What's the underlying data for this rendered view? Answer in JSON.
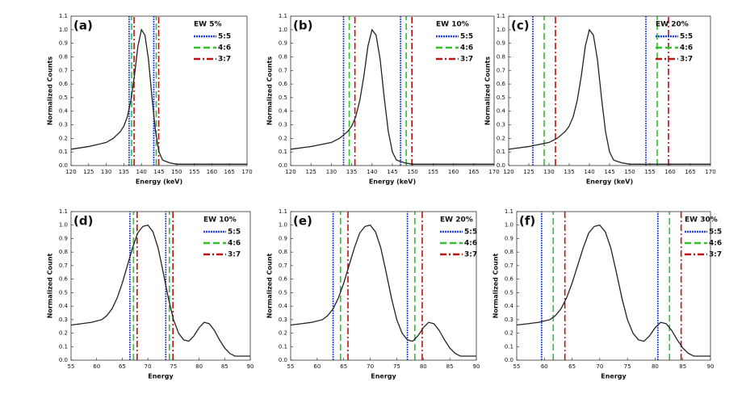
{
  "chart_data": [
    {
      "type": "line",
      "title": "(a)",
      "legend_title": "EW 5%",
      "xlabel": "Energy (keV)",
      "ylabel": "Normalized Counts",
      "x": [
        120,
        125,
        130,
        132,
        134,
        135,
        136,
        137,
        138,
        139,
        140,
        141,
        142,
        143,
        144,
        145,
        146,
        148,
        150,
        155,
        160,
        165,
        170
      ],
      "values": [
        0.12,
        0.14,
        0.17,
        0.2,
        0.25,
        0.29,
        0.36,
        0.48,
        0.66,
        0.88,
        1.0,
        0.96,
        0.78,
        0.5,
        0.25,
        0.1,
        0.04,
        0.02,
        0.01,
        0.01,
        0.01,
        0.01,
        0.01
      ],
      "color": "#222222",
      "xlim": [
        120,
        170
      ],
      "xticks": [
        120,
        125,
        130,
        135,
        140,
        145,
        150,
        155,
        160,
        165,
        170
      ],
      "ylim": [
        0,
        1.1
      ],
      "yticks": [
        {
          "value": 0,
          "label": "0.0"
        },
        0.1,
        0.2,
        0.3,
        0.4,
        0.5,
        0.6,
        0.7,
        0.8,
        0.9,
        {
          "value": 1,
          "label": "1.0"
        },
        1.1
      ],
      "windows": [
        {
          "name": "5:5",
          "color": "#2040e0",
          "dash": "2,1",
          "values": [
            136.5,
            143.5
          ]
        },
        {
          "name": "4:6",
          "color": "#30c030",
          "dash": "8,4",
          "values": [
            137.2,
            144.2
          ]
        },
        {
          "name": "3:7",
          "color": "#c01010",
          "dash": "8,3,2,3",
          "values": [
            137.9,
            144.9
          ]
        }
      ]
    },
    {
      "type": "line",
      "title": "(b)",
      "legend_title": "EW 10%",
      "xlabel": "Energy (keV)",
      "ylabel": "Normalized Counts",
      "x": [
        120,
        125,
        130,
        132,
        134,
        135,
        136,
        137,
        138,
        139,
        140,
        141,
        142,
        143,
        144,
        145,
        146,
        148,
        150,
        155,
        160,
        165,
        170
      ],
      "values": [
        0.12,
        0.14,
        0.17,
        0.2,
        0.25,
        0.29,
        0.36,
        0.48,
        0.66,
        0.88,
        1.0,
        0.96,
        0.78,
        0.5,
        0.25,
        0.1,
        0.04,
        0.02,
        0.01,
        0.01,
        0.01,
        0.01,
        0.01
      ],
      "color": "#222222",
      "xlim": [
        120,
        170
      ],
      "xticks": [
        120,
        125,
        130,
        135,
        140,
        145,
        150,
        155,
        160,
        165,
        170
      ],
      "ylim": [
        0,
        1.1
      ],
      "yticks": [
        {
          "value": 0,
          "label": "0.0"
        },
        0.1,
        0.2,
        0.3,
        0.4,
        0.5,
        0.6,
        0.7,
        0.8,
        0.9,
        {
          "value": 1,
          "label": "1.0"
        },
        1.1
      ],
      "windows": [
        {
          "name": "5:5",
          "color": "#2040e0",
          "dash": "2,1",
          "values": [
            133,
            147
          ]
        },
        {
          "name": "4:6",
          "color": "#30c030",
          "dash": "8,4",
          "values": [
            134.4,
            148.4
          ]
        },
        {
          "name": "3:7",
          "color": "#c01010",
          "dash": "8,3,2,3",
          "values": [
            135.8,
            149.8
          ]
        }
      ]
    },
    {
      "type": "line",
      "title": "(c)",
      "legend_title": "EW 20%",
      "xlabel": "Energy (keV)",
      "ylabel": "Normalized Counts",
      "x": [
        120,
        125,
        130,
        132,
        134,
        135,
        136,
        137,
        138,
        139,
        140,
        141,
        142,
        143,
        144,
        145,
        146,
        148,
        150,
        155,
        160,
        165,
        170
      ],
      "values": [
        0.12,
        0.14,
        0.17,
        0.2,
        0.25,
        0.29,
        0.36,
        0.48,
        0.66,
        0.88,
        1.0,
        0.96,
        0.78,
        0.5,
        0.25,
        0.1,
        0.04,
        0.02,
        0.01,
        0.01,
        0.01,
        0.01,
        0.01
      ],
      "color": "#222222",
      "xlim": [
        120,
        170
      ],
      "xticks": [
        120,
        125,
        130,
        135,
        140,
        145,
        150,
        155,
        160,
        165,
        170
      ],
      "ylim": [
        0,
        1.1
      ],
      "yticks": [
        {
          "value": 0,
          "label": "0.0"
        },
        0.1,
        0.2,
        0.3,
        0.4,
        0.5,
        0.6,
        0.7,
        0.8,
        0.9,
        {
          "value": 1,
          "label": "1.0"
        },
        1.1
      ],
      "windows": [
        {
          "name": "5:5",
          "color": "#2040e0",
          "dash": "2,1",
          "values": [
            126,
            154
          ]
        },
        {
          "name": "4:6",
          "color": "#30c030",
          "dash": "8,4",
          "values": [
            128.8,
            156.8
          ]
        },
        {
          "name": "3:7",
          "color": "#c01010",
          "dash": "8,3,2,3",
          "values": [
            131.6,
            159.6
          ]
        }
      ]
    },
    {
      "type": "line",
      "title": "(d)",
      "legend_title": "EW 10%",
      "xlabel": "Energy",
      "ylabel": "Normalized Count",
      "x": [
        55,
        57,
        59,
        61,
        62,
        63,
        64,
        65,
        66,
        67,
        68,
        69,
        70,
        71,
        72,
        73,
        74,
        75,
        76,
        77,
        78,
        79,
        80,
        81,
        82,
        83,
        84,
        85,
        86,
        87,
        88,
        89,
        90
      ],
      "values": [
        0.26,
        0.27,
        0.28,
        0.3,
        0.33,
        0.38,
        0.46,
        0.57,
        0.7,
        0.83,
        0.94,
        0.99,
        1.0,
        0.95,
        0.83,
        0.65,
        0.46,
        0.3,
        0.2,
        0.15,
        0.14,
        0.18,
        0.24,
        0.28,
        0.27,
        0.22,
        0.15,
        0.09,
        0.05,
        0.03,
        0.03,
        0.03,
        0.03
      ],
      "color": "#222222",
      "xlim": [
        55,
        90
      ],
      "xticks": [
        55,
        60,
        65,
        70,
        75,
        80,
        85,
        90
      ],
      "ylim": [
        0,
        1.1
      ],
      "yticks": [
        {
          "value": 0,
          "label": "0.0"
        },
        0.1,
        0.2,
        0.3,
        0.4,
        0.5,
        0.6,
        0.7,
        0.8,
        0.9,
        {
          "value": 1,
          "label": "1.0"
        },
        1.1
      ],
      "windows": [
        {
          "name": "5:5",
          "color": "#2040e0",
          "dash": "2,1",
          "values": [
            66.5,
            73.5
          ]
        },
        {
          "name": "4:6",
          "color": "#30c030",
          "dash": "8,4",
          "values": [
            67.2,
            74.2
          ]
        },
        {
          "name": "3:7",
          "color": "#c01010",
          "dash": "8,3,2,3",
          "values": [
            67.9,
            74.9
          ]
        }
      ]
    },
    {
      "type": "line",
      "title": "(e)",
      "legend_title": "EW 20%",
      "xlabel": "Energy",
      "ylabel": "Normalized Count",
      "x": [
        55,
        57,
        59,
        61,
        62,
        63,
        64,
        65,
        66,
        67,
        68,
        69,
        70,
        71,
        72,
        73,
        74,
        75,
        76,
        77,
        78,
        79,
        80,
        81,
        82,
        83,
        84,
        85,
        86,
        87,
        88,
        89,
        90
      ],
      "values": [
        0.26,
        0.27,
        0.28,
        0.3,
        0.33,
        0.38,
        0.46,
        0.57,
        0.7,
        0.83,
        0.94,
        0.99,
        1.0,
        0.95,
        0.83,
        0.65,
        0.46,
        0.3,
        0.2,
        0.15,
        0.14,
        0.18,
        0.24,
        0.28,
        0.27,
        0.22,
        0.15,
        0.09,
        0.05,
        0.03,
        0.03,
        0.03,
        0.03
      ],
      "color": "#222222",
      "xlim": [
        55,
        90
      ],
      "xticks": [
        55,
        60,
        65,
        70,
        75,
        80,
        85,
        90
      ],
      "ylim": [
        0,
        1.1
      ],
      "yticks": [
        {
          "value": 0,
          "label": "0.0"
        },
        0.1,
        0.2,
        0.3,
        0.4,
        0.5,
        0.6,
        0.7,
        0.8,
        0.9,
        {
          "value": 1,
          "label": "1.0"
        },
        1.1
      ],
      "windows": [
        {
          "name": "5:5",
          "color": "#2040e0",
          "dash": "2,1",
          "values": [
            63,
            77
          ]
        },
        {
          "name": "4:6",
          "color": "#30c030",
          "dash": "8,4",
          "values": [
            64.4,
            78.4
          ]
        },
        {
          "name": "3:7",
          "color": "#c01010",
          "dash": "8,3,2,3",
          "values": [
            65.8,
            79.8
          ]
        }
      ]
    },
    {
      "type": "line",
      "title": "(f)",
      "legend_title": "EW 30%",
      "xlabel": "Energy",
      "ylabel": "Normalized Count",
      "x": [
        55,
        57,
        59,
        61,
        62,
        63,
        64,
        65,
        66,
        67,
        68,
        69,
        70,
        71,
        72,
        73,
        74,
        75,
        76,
        77,
        78,
        79,
        80,
        81,
        82,
        83,
        84,
        85,
        86,
        87,
        88,
        89,
        90
      ],
      "values": [
        0.26,
        0.27,
        0.28,
        0.3,
        0.33,
        0.38,
        0.46,
        0.57,
        0.7,
        0.83,
        0.94,
        0.99,
        1.0,
        0.95,
        0.83,
        0.65,
        0.46,
        0.3,
        0.2,
        0.15,
        0.14,
        0.18,
        0.24,
        0.28,
        0.27,
        0.22,
        0.15,
        0.09,
        0.05,
        0.03,
        0.03,
        0.03,
        0.03
      ],
      "color": "#222222",
      "xlim": [
        55,
        90
      ],
      "xticks": [
        55,
        60,
        65,
        70,
        75,
        80,
        85,
        90
      ],
      "ylim": [
        0,
        1.1
      ],
      "yticks": [
        {
          "value": 0,
          "label": "0.0"
        },
        0.1,
        0.2,
        0.3,
        0.4,
        0.5,
        0.6,
        0.7,
        0.8,
        0.9,
        {
          "value": 1,
          "label": "1.0"
        },
        1.1
      ],
      "windows": [
        {
          "name": "5:5",
          "color": "#2040e0",
          "dash": "2,1",
          "values": [
            59.5,
            80.5
          ]
        },
        {
          "name": "4:6",
          "color": "#30c030",
          "dash": "8,4",
          "values": [
            61.6,
            82.6
          ]
        },
        {
          "name": "3:7",
          "color": "#c01010",
          "dash": "8,3,2,3",
          "values": [
            63.7,
            84.7
          ]
        }
      ]
    }
  ]
}
